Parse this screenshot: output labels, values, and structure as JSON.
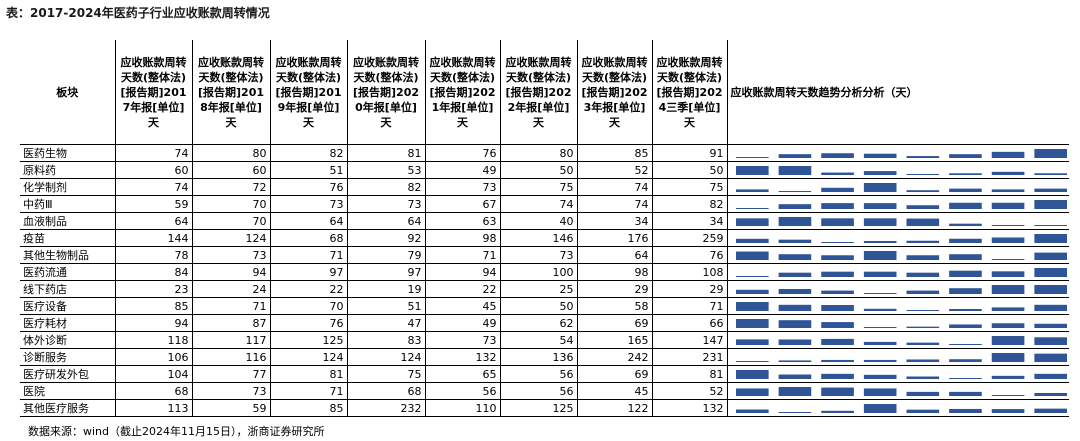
{
  "title": "表：2017-2024年医药子行业应收账款周转情况",
  "table": {
    "header": [
      "板块",
      "应收账款周转天数(整体法)[报告期]2017年报[单位]天",
      "应收账款周转天数(整体法)[报告期]2018年报[单位]天",
      "应收账款周转天数(整体法)[报告期]2019年报[单位]天",
      "应收账款周转天数(整体法)[报告期]2020年报[单位]天",
      "应收账款周转天数(整体法)[报告期]2021年报[单位]天",
      "应收账款周转天数(整体法)[报告期]2022年报[单位]天",
      "应收账款周转天数(整体法)[报告期]2023年报[单位]天",
      "应收账款周转天数(整体法)[报告期]2024三季[单位]天",
      "应收账款周转天数趋势分析分析（天）"
    ],
    "rows": [
      [
        "医药生物",
        74,
        80,
        82,
        81,
        76,
        80,
        85,
        91
      ],
      [
        "原料药",
        60,
        60,
        51,
        53,
        49,
        50,
        52,
        50
      ],
      [
        "化学制剂",
        74,
        72,
        76,
        82,
        73,
        75,
        74,
        75
      ],
      [
        "中药Ⅲ",
        59,
        70,
        73,
        73,
        67,
        74,
        74,
        82
      ],
      [
        "血液制品",
        64,
        70,
        64,
        64,
        63,
        40,
        34,
        34
      ],
      [
        "疫苗",
        144,
        124,
        68,
        92,
        98,
        146,
        176,
        259
      ],
      [
        "其他生物制品",
        78,
        73,
        71,
        79,
        71,
        73,
        64,
        76
      ],
      [
        "医药流通",
        84,
        94,
        97,
        97,
        94,
        100,
        98,
        108
      ],
      [
        "线下药店",
        23,
        24,
        22,
        19,
        22,
        25,
        29,
        29
      ],
      [
        "医疗设备",
        85,
        71,
        70,
        51,
        45,
        50,
        58,
        71
      ],
      [
        "医疗耗材",
        94,
        87,
        76,
        47,
        49,
        62,
        69,
        66
      ],
      [
        "体外诊断",
        118,
        117,
        125,
        83,
        73,
        54,
        165,
        147
      ],
      [
        "诊断服务",
        106,
        116,
        124,
        124,
        132,
        136,
        242,
        231
      ],
      [
        "医疗研发外包",
        104,
        77,
        81,
        75,
        65,
        56,
        69,
        81
      ],
      [
        "医院",
        68,
        73,
        71,
        68,
        56,
        56,
        45,
        52
      ],
      [
        "其他医疗服务",
        113,
        59,
        85,
        232,
        110,
        125,
        122,
        132
      ]
    ]
  },
  "source": "数据来源：wind（截止2024年11月15日），浙商证券研究所"
}
